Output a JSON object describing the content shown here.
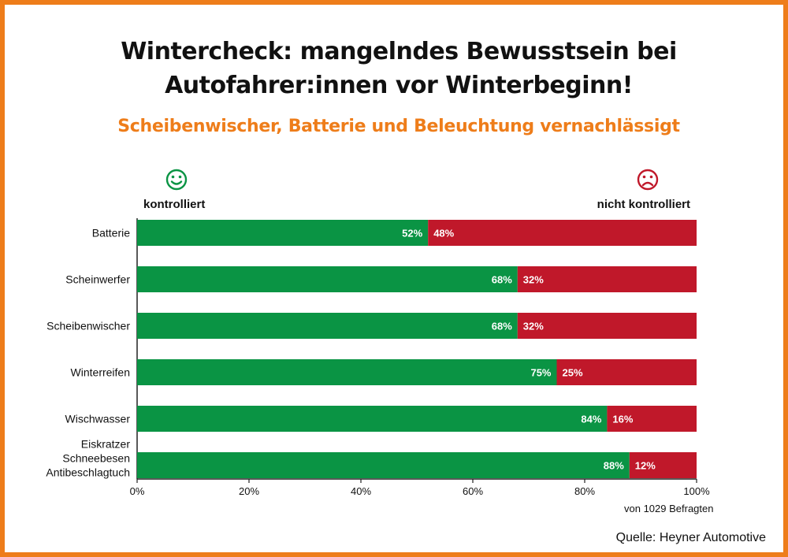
{
  "title_line1": "Wintercheck: mangelndes Bewusstsein bei",
  "title_line2": "Autofahrer:innen vor Winterbeginn!",
  "subtitle": "Scheibenwischer, Batterie und Beleuchtung vernachlässigt",
  "legend": {
    "positive": "kontrolliert",
    "negative": "nicht kontrolliert",
    "positive_icon": "smiley-happy-icon",
    "negative_icon": "smiley-sad-icon"
  },
  "note": "von 1029 Befragten",
  "source": "Quelle: Heyner Automotive",
  "colors": {
    "frame": "#ee7d1a",
    "subtitle": "#ee7d1a",
    "positive": "#0a9444",
    "negative": "#c0182a"
  },
  "chart_data": {
    "type": "bar",
    "orientation": "horizontal",
    "stacked": true,
    "categories": [
      "Batterie",
      "Scheinwerfer",
      "Scheibenwischer",
      "Winterreifen",
      "Wischwasser",
      "Eiskratzer Schneebesen Antibeschlagtuch"
    ],
    "series": [
      {
        "name": "kontrolliert",
        "color": "#0a9444",
        "values": [
          52,
          68,
          68,
          75,
          84,
          88
        ]
      },
      {
        "name": "nicht kontrolliert",
        "color": "#c0182a",
        "values": [
          48,
          32,
          32,
          25,
          16,
          12
        ]
      }
    ],
    "xlim": [
      0,
      100
    ],
    "xticks": [
      "0%",
      "20%",
      "40%",
      "60%",
      "80%",
      "100%"
    ],
    "value_suffix": "%",
    "grid": false
  }
}
